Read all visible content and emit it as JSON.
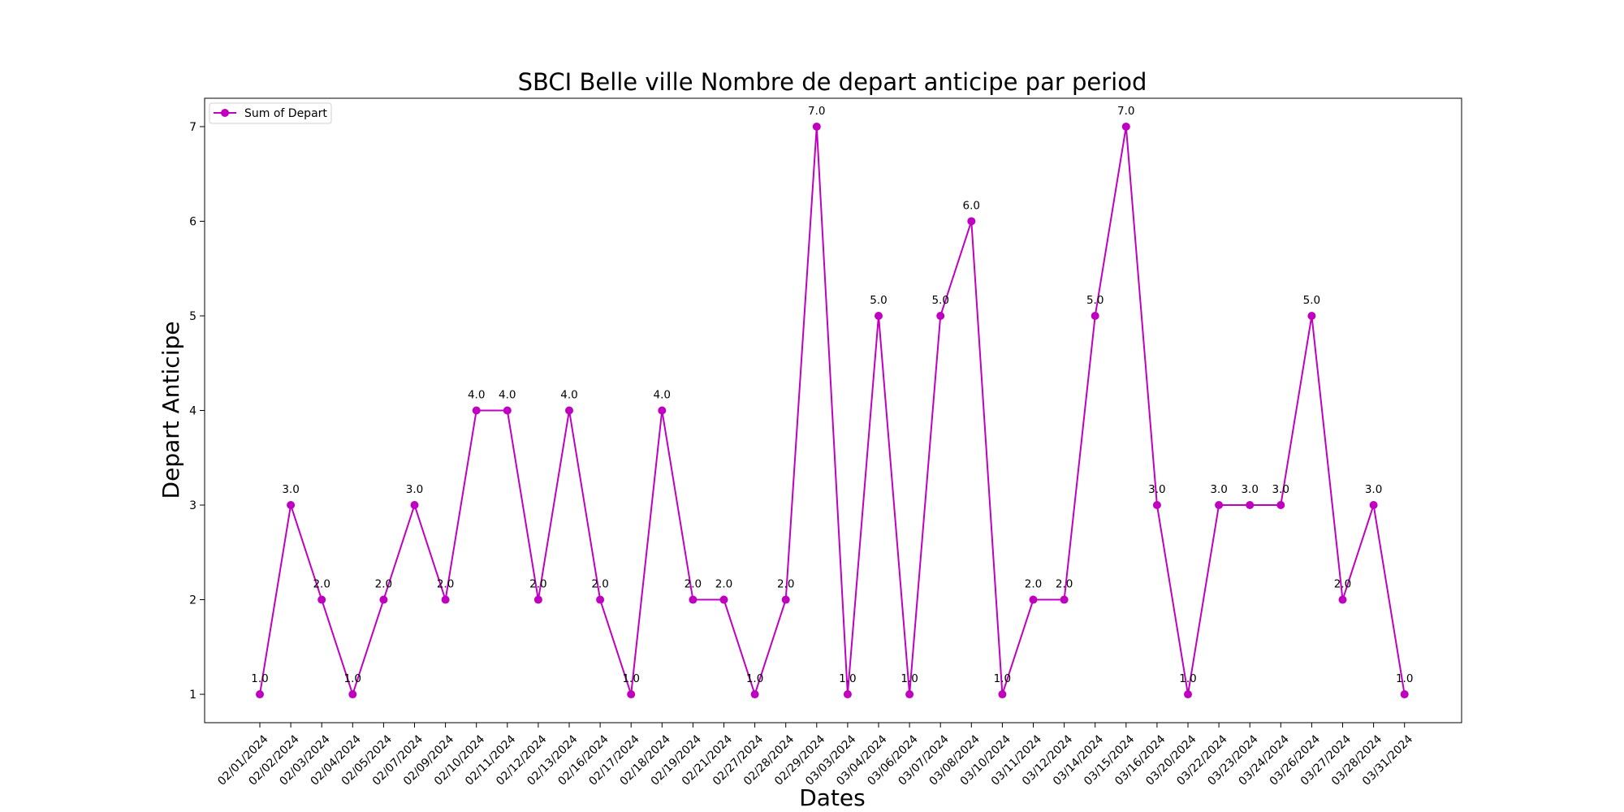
{
  "chart_data": {
    "type": "line",
    "title": "SBCI Belle ville Nombre de depart anticipe par period",
    "xlabel": "Dates",
    "ylabel": "Depart Anticipe",
    "x": [
      "02/01/2024",
      "02/02/2024",
      "02/03/2024",
      "02/04/2024",
      "02/05/2024",
      "02/07/2024",
      "02/09/2024",
      "02/10/2024",
      "02/11/2024",
      "02/12/2024",
      "02/13/2024",
      "02/16/2024",
      "02/17/2024",
      "02/18/2024",
      "02/19/2024",
      "02/21/2024",
      "02/27/2024",
      "02/28/2024",
      "02/29/2024",
      "03/03/2024",
      "03/04/2024",
      "03/06/2024",
      "03/07/2024",
      "03/08/2024",
      "03/10/2024",
      "03/11/2024",
      "03/12/2024",
      "03/14/2024",
      "03/15/2024",
      "03/16/2024",
      "03/20/2024",
      "03/22/2024",
      "03/23/2024",
      "03/24/2024",
      "03/26/2024",
      "03/27/2024",
      "03/28/2024",
      "03/31/2024"
    ],
    "series": [
      {
        "name": "Sum of Depart",
        "color": "#c000c0",
        "values": [
          1,
          3,
          2,
          1,
          2,
          3,
          2,
          4,
          4,
          2,
          4,
          2,
          1,
          4,
          2,
          2,
          1,
          2,
          7,
          1,
          5,
          1,
          5,
          6,
          1,
          2,
          2,
          5,
          7,
          3,
          1,
          3,
          3,
          3,
          5,
          2,
          3,
          1
        ],
        "labels": [
          "1.0",
          "3.0",
          "2.0",
          "1.0",
          "2.0",
          "3.0",
          "2.0",
          "4.0",
          "4.0",
          "2.0",
          "4.0",
          "2.0",
          "1.0",
          "4.0",
          "2.0",
          "2.0",
          "1.0",
          "2.0",
          "7.0",
          "1.0",
          "5.0",
          "1.0",
          "5.0",
          "6.0",
          "1.0",
          "2.0",
          "2.0",
          "5.0",
          "7.0",
          "3.0",
          "1.0",
          "3.0",
          "3.0",
          "3.0",
          "5.0",
          "2.0",
          "3.0",
          "1.0"
        ]
      }
    ],
    "yticks": [
      "1",
      "2",
      "3",
      "4",
      "5",
      "6",
      "7"
    ],
    "ylim": [
      0.7,
      7.3
    ],
    "grid": false,
    "legend_position": "top-left"
  }
}
